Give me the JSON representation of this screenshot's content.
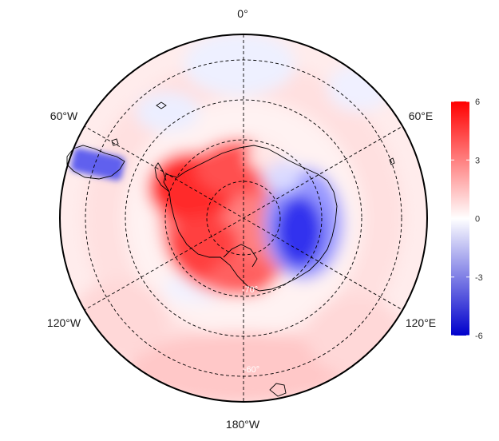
{
  "map": {
    "projection": "south-polar-stereographic",
    "longitude_labels": {
      "top": "0°",
      "upper_left": "60°W",
      "upper_right": "60°E",
      "lower_left": "120°W",
      "lower_right": "120°E",
      "bottom": "180°W"
    },
    "latitude_labels": [
      "-70°",
      "-60°"
    ],
    "colorbar": {
      "ticks": [
        "6",
        "3",
        "0",
        "-3",
        "-6"
      ],
      "min": -6,
      "max": 6,
      "colors": {
        "high": "#ff0000",
        "mid": "#ffffff",
        "low": "#0000cc"
      }
    }
  }
}
